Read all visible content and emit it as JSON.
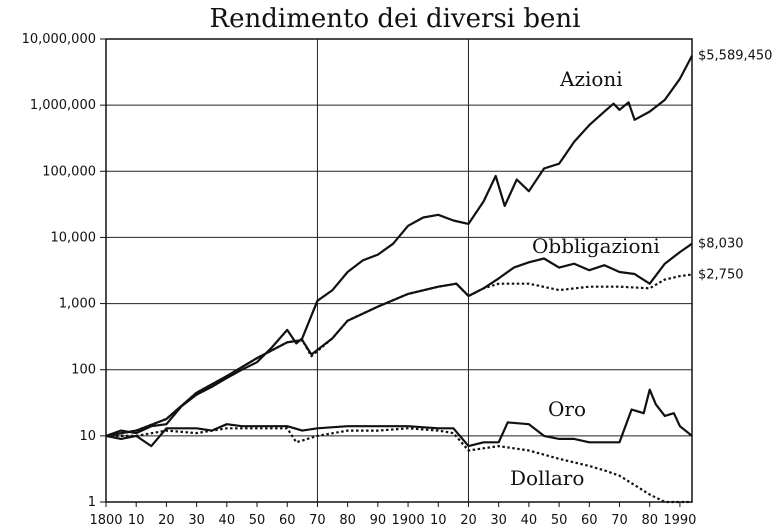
{
  "chart_data": {
    "type": "line",
    "title": "Rendimento dei diversi beni",
    "xlabel": "",
    "ylabel": "",
    "y_scale": "log",
    "ylim": [
      1,
      10000000
    ],
    "xlim": [
      1800,
      1994
    ],
    "grid": true,
    "y_ticks": [
      "1",
      "10",
      "100",
      "1,000",
      "10,000",
      "100,000",
      "1,000,000",
      "10,000,000"
    ],
    "x_tick_labels": [
      "1800",
      "10",
      "20",
      "30",
      "40",
      "50",
      "60",
      "70",
      "80",
      "90",
      "1900",
      "10",
      "20",
      "30",
      "40",
      "50",
      "60",
      "70",
      "80",
      "1990"
    ],
    "x_tick_years": [
      1800,
      1810,
      1820,
      1830,
      1840,
      1850,
      1860,
      1870,
      1880,
      1890,
      1900,
      1910,
      1920,
      1930,
      1940,
      1950,
      1960,
      1970,
      1980,
      1990
    ],
    "series": [
      {
        "name": "Azioni",
        "style": "solid",
        "end_label": "$5,589,450",
        "points": [
          [
            1800,
            10
          ],
          [
            1805,
            12
          ],
          [
            1810,
            11
          ],
          [
            1815,
            14
          ],
          [
            1820,
            15
          ],
          [
            1825,
            28
          ],
          [
            1830,
            42
          ],
          [
            1835,
            55
          ],
          [
            1840,
            75
          ],
          [
            1845,
            100
          ],
          [
            1850,
            130
          ],
          [
            1855,
            220
          ],
          [
            1860,
            400
          ],
          [
            1863,
            250
          ],
          [
            1865,
            300
          ],
          [
            1870,
            1100
          ],
          [
            1875,
            1600
          ],
          [
            1880,
            3000
          ],
          [
            1885,
            4500
          ],
          [
            1890,
            5500
          ],
          [
            1895,
            8000
          ],
          [
            1900,
            15000
          ],
          [
            1905,
            20000
          ],
          [
            1910,
            22000
          ],
          [
            1915,
            18000
          ],
          [
            1920,
            16000
          ],
          [
            1925,
            35000
          ],
          [
            1929,
            85000
          ],
          [
            1932,
            30000
          ],
          [
            1936,
            75000
          ],
          [
            1940,
            50000
          ],
          [
            1945,
            110000
          ],
          [
            1950,
            130000
          ],
          [
            1955,
            280000
          ],
          [
            1960,
            500000
          ],
          [
            1965,
            800000
          ],
          [
            1968,
            1050000
          ],
          [
            1970,
            850000
          ],
          [
            1973,
            1100000
          ],
          [
            1975,
            600000
          ],
          [
            1980,
            800000
          ],
          [
            1985,
            1200000
          ],
          [
            1990,
            2500000
          ],
          [
            1994,
            5589450
          ]
        ]
      },
      {
        "name": "Obbligazioni",
        "style": "solid",
        "end_label": "$8,030",
        "points": [
          [
            1800,
            10
          ],
          [
            1810,
            12
          ],
          [
            1820,
            18
          ],
          [
            1830,
            45
          ],
          [
            1840,
            80
          ],
          [
            1850,
            150
          ],
          [
            1860,
            260
          ],
          [
            1865,
            280
          ],
          [
            1868,
            170
          ],
          [
            1875,
            300
          ],
          [
            1880,
            550
          ],
          [
            1890,
            900
          ],
          [
            1900,
            1400
          ],
          [
            1910,
            1800
          ],
          [
            1916,
            2000
          ],
          [
            1920,
            1300
          ],
          [
            1925,
            1700
          ],
          [
            1930,
            2400
          ],
          [
            1935,
            3500
          ],
          [
            1940,
            4200
          ],
          [
            1945,
            4800
          ],
          [
            1950,
            3500
          ],
          [
            1955,
            4000
          ],
          [
            1960,
            3200
          ],
          [
            1965,
            3800
          ],
          [
            1970,
            3000
          ],
          [
            1975,
            2800
          ],
          [
            1980,
            2000
          ],
          [
            1985,
            4000
          ],
          [
            1990,
            6000
          ],
          [
            1994,
            8030
          ]
        ]
      },
      {
        "name": "",
        "style": "dotted",
        "end_label": "$2,750",
        "points": [
          [
            1800,
            10
          ],
          [
            1810,
            12
          ],
          [
            1820,
            18
          ],
          [
            1830,
            45
          ],
          [
            1840,
            80
          ],
          [
            1850,
            150
          ],
          [
            1860,
            260
          ],
          [
            1865,
            280
          ],
          [
            1868,
            160
          ],
          [
            1875,
            300
          ],
          [
            1880,
            550
          ],
          [
            1890,
            900
          ],
          [
            1900,
            1400
          ],
          [
            1910,
            1800
          ],
          [
            1916,
            2000
          ],
          [
            1920,
            1300
          ],
          [
            1925,
            1700
          ],
          [
            1930,
            2000
          ],
          [
            1940,
            2000
          ],
          [
            1950,
            1600
          ],
          [
            1960,
            1800
          ],
          [
            1970,
            1800
          ],
          [
            1980,
            1700
          ],
          [
            1985,
            2300
          ],
          [
            1990,
            2600
          ],
          [
            1994,
            2750
          ]
        ]
      },
      {
        "name": "Oro",
        "style": "solid",
        "end_label": "",
        "points": [
          [
            1800,
            10
          ],
          [
            1805,
            9
          ],
          [
            1810,
            10
          ],
          [
            1815,
            7
          ],
          [
            1820,
            13
          ],
          [
            1830,
            13
          ],
          [
            1835,
            12
          ],
          [
            1840,
            15
          ],
          [
            1845,
            14
          ],
          [
            1850,
            14
          ],
          [
            1860,
            14
          ],
          [
            1865,
            12
          ],
          [
            1870,
            13
          ],
          [
            1880,
            14
          ],
          [
            1890,
            14
          ],
          [
            1900,
            14
          ],
          [
            1910,
            13
          ],
          [
            1915,
            13
          ],
          [
            1920,
            7
          ],
          [
            1925,
            8
          ],
          [
            1930,
            8
          ],
          [
            1933,
            16
          ],
          [
            1940,
            15
          ],
          [
            1945,
            10
          ],
          [
            1950,
            9
          ],
          [
            1955,
            9
          ],
          [
            1960,
            8
          ],
          [
            1965,
            8
          ],
          [
            1970,
            8
          ],
          [
            1974,
            25
          ],
          [
            1978,
            22
          ],
          [
            1980,
            50
          ],
          [
            1982,
            30
          ],
          [
            1985,
            20
          ],
          [
            1988,
            22
          ],
          [
            1990,
            14
          ],
          [
            1994,
            10
          ]
        ]
      },
      {
        "name": "Dollaro",
        "style": "dotted",
        "end_label": "",
        "points": [
          [
            1800,
            10
          ],
          [
            1810,
            10
          ],
          [
            1820,
            12
          ],
          [
            1830,
            11
          ],
          [
            1840,
            13
          ],
          [
            1850,
            13
          ],
          [
            1860,
            13
          ],
          [
            1863,
            8
          ],
          [
            1870,
            10
          ],
          [
            1880,
            12
          ],
          [
            1890,
            12
          ],
          [
            1900,
            13
          ],
          [
            1910,
            12
          ],
          [
            1915,
            11
          ],
          [
            1920,
            6
          ],
          [
            1930,
            7
          ],
          [
            1940,
            6
          ],
          [
            1950,
            4.5
          ],
          [
            1960,
            3.5
          ],
          [
            1965,
            3
          ],
          [
            1970,
            2.5
          ],
          [
            1975,
            1.8
          ],
          [
            1980,
            1.3
          ],
          [
            1985,
            1.0
          ],
          [
            1990,
            0.8
          ],
          [
            1994,
            0.7
          ]
        ]
      }
    ]
  }
}
